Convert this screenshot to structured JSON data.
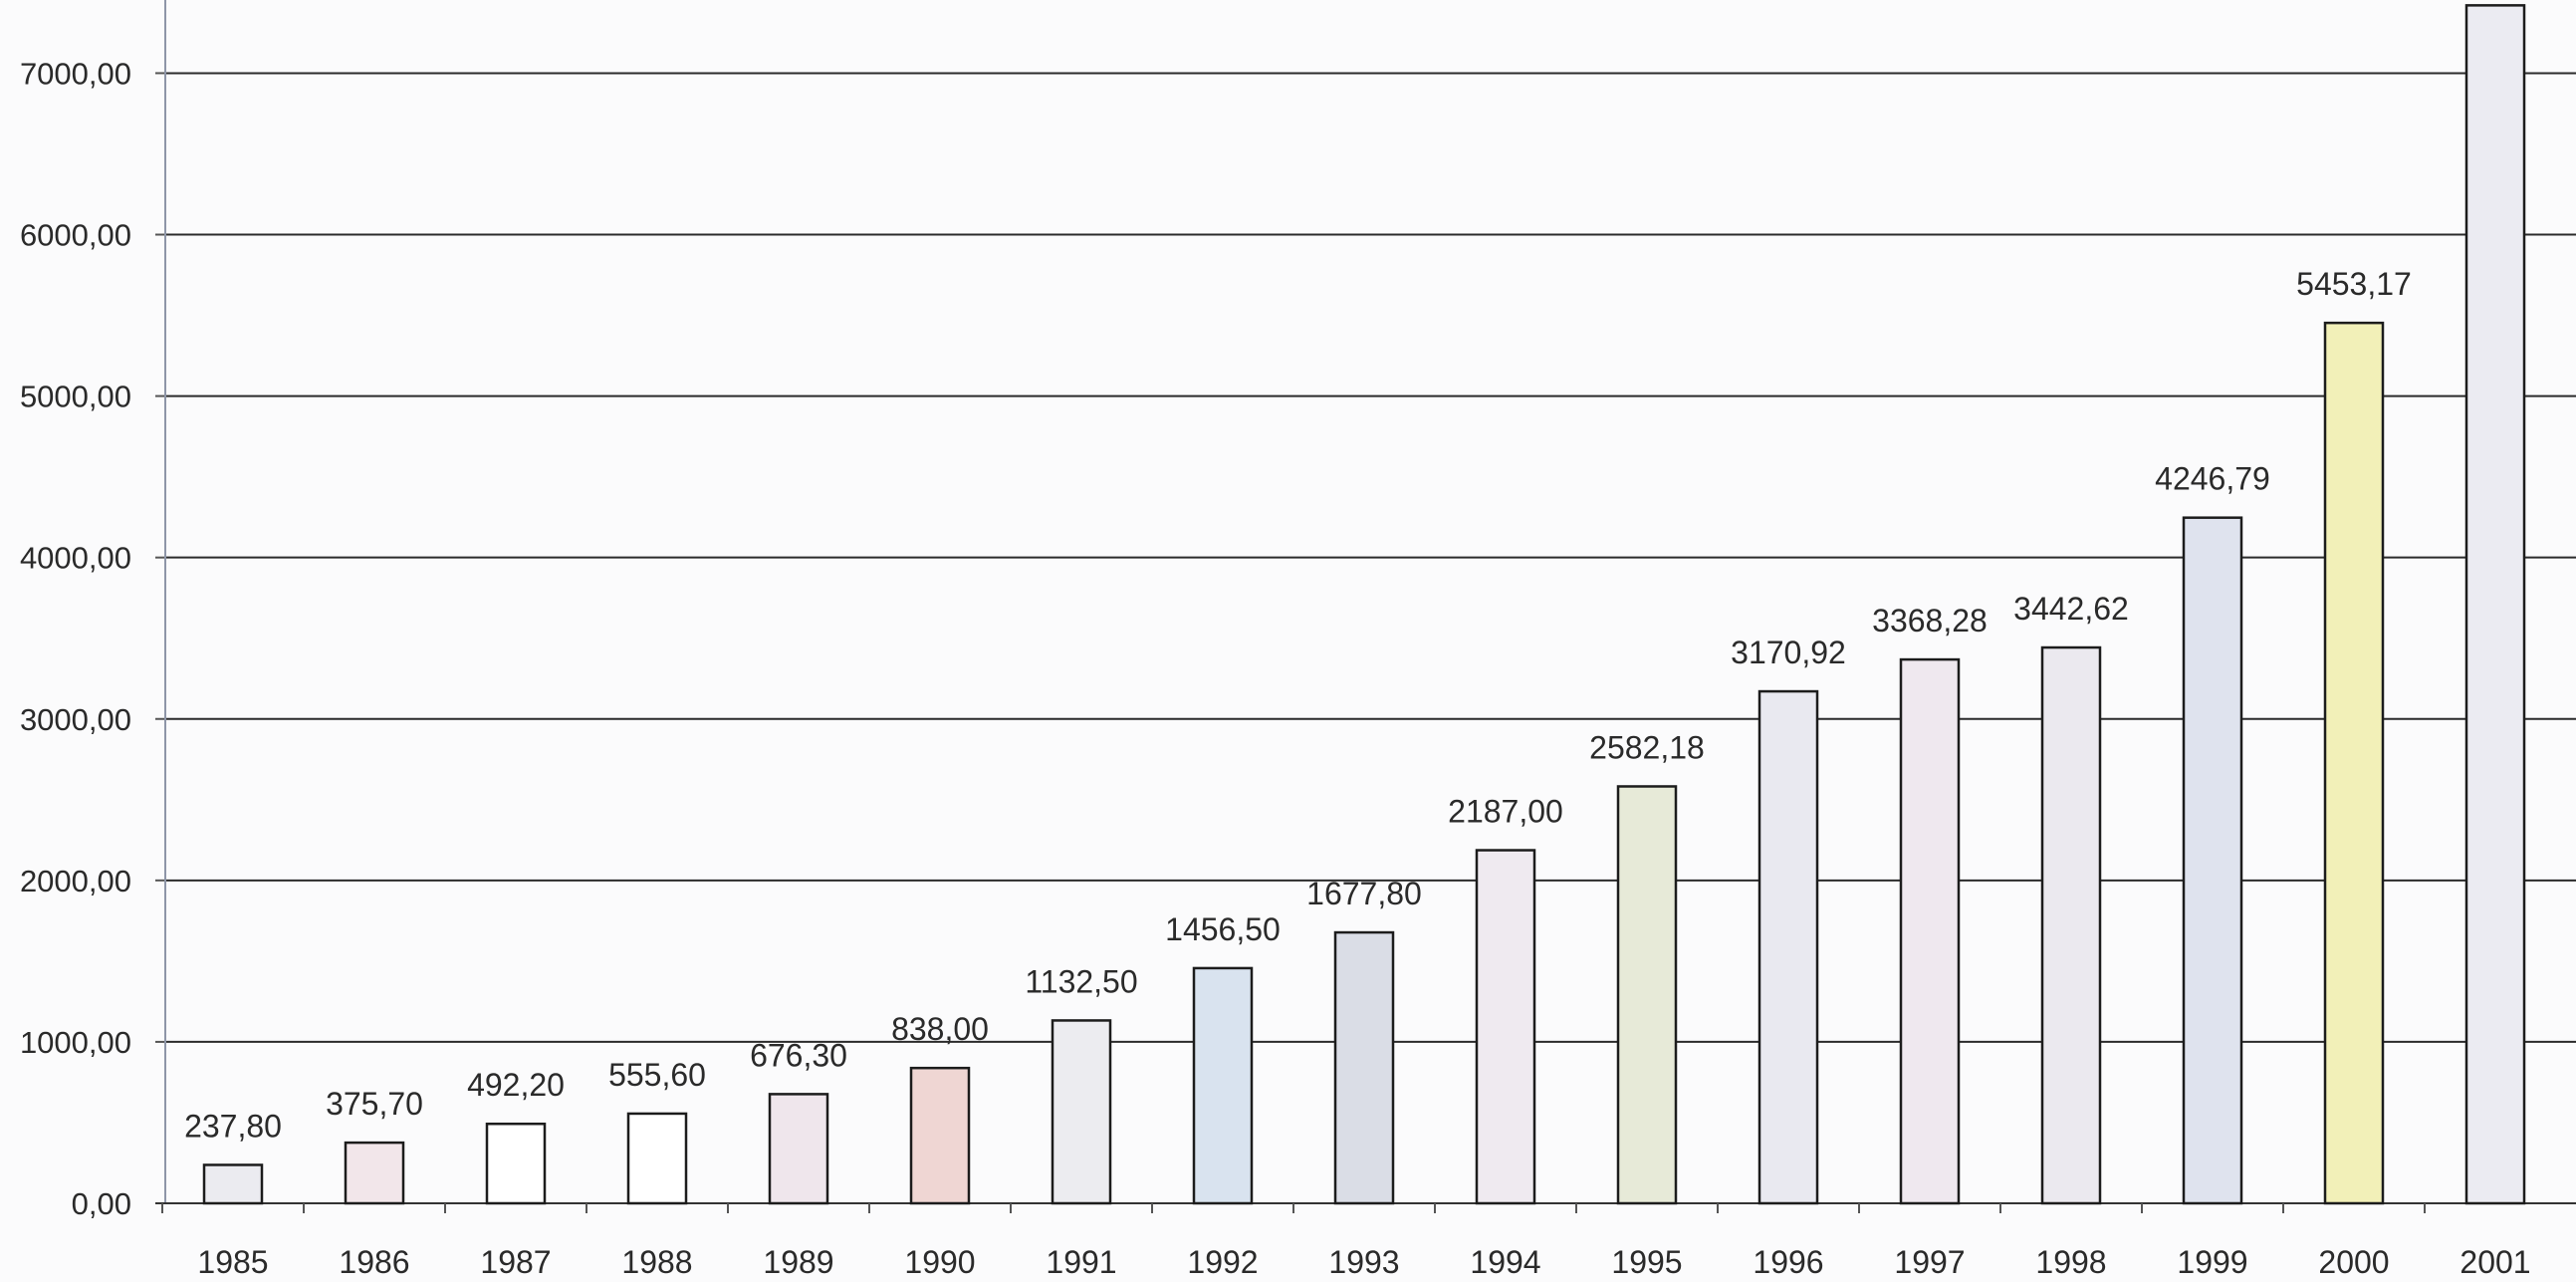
{
  "chart_data": {
    "type": "bar",
    "title": "",
    "xlabel": "",
    "ylabel": "",
    "categories": [
      "1985",
      "1986",
      "1987",
      "1988",
      "1989",
      "1990",
      "1991",
      "1992",
      "1993",
      "1994",
      "1995",
      "1996",
      "1997",
      "1998",
      "1999",
      "2000",
      "2001"
    ],
    "values": [
      237.8,
      375.7,
      492.2,
      555.6,
      676.3,
      838.0,
      1132.5,
      1456.5,
      1677.8,
      2187.0,
      2582.18,
      3170.92,
      3368.28,
      3442.62,
      4246.79,
      5453.17,
      7420.0
    ],
    "data_labels": [
      "237,80",
      "375,70",
      "492,20",
      "555,60",
      "676,30",
      "838,00",
      "1132,50",
      "1456,50",
      "1677,80",
      "2187,00",
      "2582,18",
      "3170,92",
      "3368,28",
      "3442,62",
      "4246,79",
      "5453,17",
      ""
    ],
    "y_ticks": [
      0,
      1000,
      2000,
      3000,
      4000,
      5000,
      6000,
      7000
    ],
    "y_tick_labels": [
      "0,00",
      "1000,00",
      "2000,00",
      "3000,00",
      "4000,00",
      "5000,00",
      "6000,00",
      "7000,00"
    ],
    "ylim": [
      0,
      7440
    ],
    "grid": true,
    "legend": "none",
    "bar_colors": [
      "#ebebf0",
      "#f2e6ea",
      "#ffffff",
      "#ffffff",
      "#efe6ec",
      "#efd6d3",
      "#ececf0",
      "#d9e3ef",
      "#dadde6",
      "#efeaf0",
      "#e7ead8",
      "#e9e9f0",
      "#efe8ef",
      "#ebe9ef",
      "#dfe3ee",
      "#f2f0b8",
      "#ebebf2"
    ]
  }
}
